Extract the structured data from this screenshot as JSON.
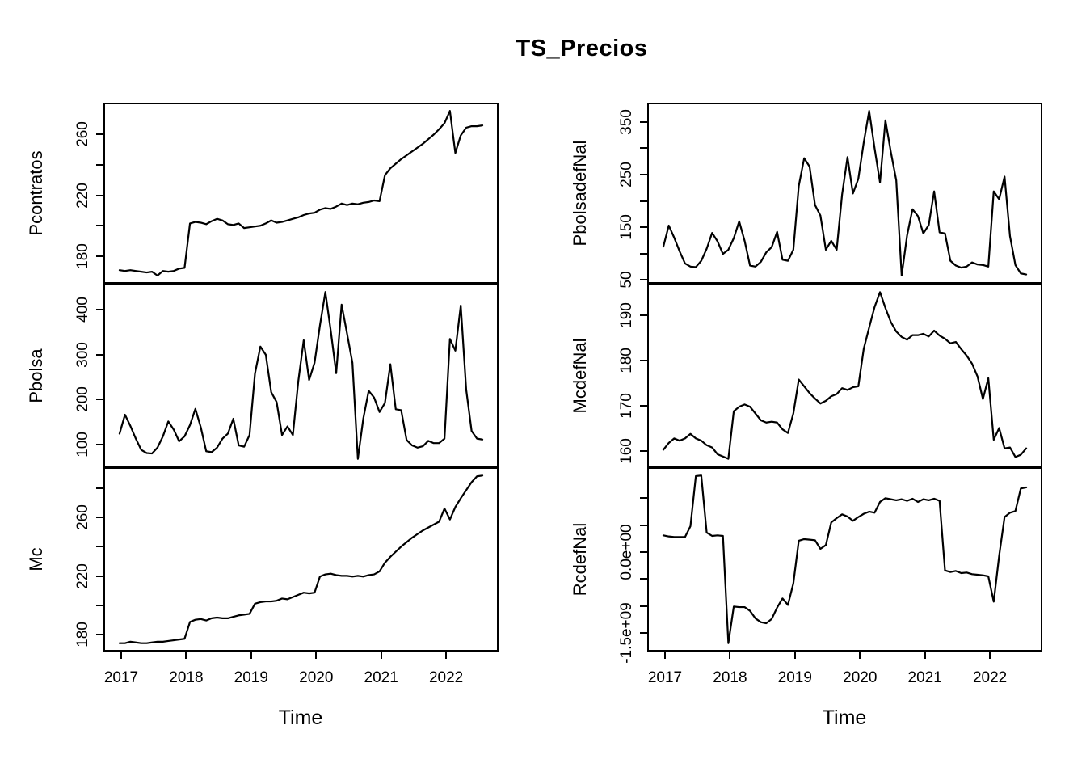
{
  "title": "TS_Precios",
  "chart_data": {
    "type": "line",
    "title": "TS_Precios",
    "xlabel": "Time",
    "x_unit": "monthly",
    "x_start": 2017.0,
    "x_end": 2022.5833,
    "n_points": 68,
    "x_ticks": [
      2017,
      2018,
      2019,
      2020,
      2021,
      2022
    ],
    "x_tick_labels": [
      "2017",
      "2018",
      "2019",
      "2020",
      "2021",
      "2022"
    ],
    "grid": "off",
    "line_color": "#000000",
    "panels": [
      {
        "name": "Pcontratos",
        "row": 0,
        "col": 0,
        "ylim": [
          162.2,
          278.3
        ],
        "yticks": [
          [
            180,
            "180"
          ],
          [
            200,
            ""
          ],
          [
            220,
            "220"
          ],
          [
            240,
            ""
          ],
          [
            260,
            "260"
          ]
        ],
        "values": [
          170,
          169.5,
          170,
          169.5,
          169,
          168.5,
          169,
          166.5,
          169.5,
          169,
          169.5,
          171,
          171.5,
          200.5,
          201.5,
          201,
          200,
          202,
          203.5,
          202.5,
          200,
          199.5,
          200.5,
          197.5,
          198,
          198.5,
          199,
          200.5,
          202.5,
          201,
          201.5,
          202.5,
          203.5,
          204.5,
          206,
          207,
          207.5,
          209.5,
          210.5,
          210,
          211.5,
          213.5,
          212.5,
          213.5,
          213,
          214,
          214.5,
          215.5,
          215,
          232,
          236.5,
          239.5,
          242.5,
          245,
          247.5,
          250,
          252.5,
          255.5,
          258.5,
          262,
          266,
          274,
          246.5,
          258,
          263,
          264,
          264,
          264.5
        ]
      },
      {
        "name": "PbolsadefNal",
        "row": 0,
        "col": 1,
        "ylim": [
          42.5,
          380.5
        ],
        "yticks": [
          [
            50,
            "50"
          ],
          [
            100,
            ""
          ],
          [
            150,
            "150"
          ],
          [
            200,
            ""
          ],
          [
            250,
            "250"
          ],
          [
            300,
            ""
          ],
          [
            350,
            "350"
          ]
        ],
        "values": [
          110,
          150,
          127,
          101,
          78,
          72,
          71,
          83,
          106,
          136,
          120,
          96,
          104,
          126,
          158,
          121,
          74,
          72,
          81,
          99,
          109,
          138,
          85,
          83,
          104,
          225,
          278,
          262,
          189,
          169,
          104,
          121,
          104,
          209,
          280,
          211,
          239,
          308,
          368,
          297,
          232,
          350,
          290,
          236,
          55,
          131,
          181,
          168,
          135,
          151,
          215,
          137,
          135,
          83,
          74,
          70,
          72,
          80,
          76,
          75,
          72,
          215,
          200,
          243,
          130,
          75,
          59,
          57
        ]
      },
      {
        "name": "Pbolsa",
        "row": 1,
        "col": 0,
        "ylim": [
          50.2,
          449.8
        ],
        "yticks": [
          [
            100,
            "100"
          ],
          [
            200,
            "200"
          ],
          [
            300,
            "300"
          ],
          [
            400,
            "400"
          ]
        ],
        "values": [
          121,
          163,
          138,
          110,
          85,
          78,
          77,
          90,
          115,
          148,
          130,
          104,
          115,
          140,
          176,
          135,
          82,
          80,
          90,
          110,
          121,
          154,
          95,
          92,
          118,
          254,
          314,
          296,
          213,
          191,
          118,
          137,
          118,
          237,
          328,
          240,
          278,
          361,
          435,
          349,
          255,
          407,
          343,
          278,
          65,
          154,
          216,
          201,
          169,
          189,
          275,
          175,
          173,
          107,
          95,
          90,
          93,
          105,
          100,
          100,
          110,
          331,
          305,
          405,
          219,
          127,
          110,
          108
        ]
      },
      {
        "name": "McdefNal",
        "row": 1,
        "col": 1,
        "ylim": [
          156.5,
          196.3
        ],
        "yticks": [
          [
            160,
            "160"
          ],
          [
            170,
            "170"
          ],
          [
            180,
            "180"
          ],
          [
            190,
            "190"
          ]
        ],
        "values": [
          160,
          161.5,
          162.5,
          162,
          162.5,
          163.5,
          162.5,
          162,
          161,
          160.5,
          159,
          158.5,
          158,
          168.5,
          169.5,
          170,
          169.5,
          168,
          166.5,
          166,
          166.2,
          166,
          164.5,
          163.7,
          168,
          175.5,
          174,
          172.5,
          171.3,
          170.2,
          170.8,
          171.8,
          172.3,
          173.6,
          173.2,
          173.8,
          174,
          182.3,
          187,
          191.5,
          194.8,
          191.3,
          188.2,
          186.1,
          184.9,
          184.3,
          185.3,
          185.3,
          185.6,
          185,
          186.3,
          185.2,
          184.5,
          183.5,
          183.8,
          182.2,
          180.8,
          179,
          176.2,
          171.2,
          175.8,
          162.2,
          164.8,
          160.3,
          160.5,
          158.4,
          158.9,
          160.3
        ]
      },
      {
        "name": "Mc",
        "row": 2,
        "col": 0,
        "ylim": [
          168.4,
          292.1
        ],
        "yticks": [
          [
            180,
            "180"
          ],
          [
            200,
            ""
          ],
          [
            220,
            "220"
          ],
          [
            240,
            ""
          ],
          [
            260,
            "260"
          ],
          [
            280,
            ""
          ]
        ],
        "values": [
          173,
          173,
          174,
          173.5,
          173,
          173,
          173.5,
          174,
          174,
          174.5,
          175,
          175.5,
          176,
          187.5,
          189,
          189.5,
          188.5,
          190,
          190.5,
          190,
          190,
          191,
          192,
          192.5,
          193,
          200,
          201,
          201.5,
          201.5,
          202,
          203.5,
          203,
          204.5,
          206,
          207.5,
          207,
          207.5,
          218.5,
          220,
          220.5,
          219.5,
          219,
          219,
          218.5,
          219,
          218.5,
          219.5,
          220,
          222,
          228,
          232,
          235.5,
          239,
          242,
          245,
          247.5,
          250,
          252,
          254,
          256,
          265,
          257.5,
          266,
          272,
          277.5,
          283,
          287,
          287.5
        ]
      },
      {
        "name": "RcdefNal",
        "row": 2,
        "col": 1,
        "unit": "1e9",
        "ylim": [
          -1.844,
          1.514
        ],
        "yticks": [
          [
            -1.5,
            "-1.5e+09"
          ],
          [
            -1.0,
            ""
          ],
          [
            -0.5,
            ""
          ],
          [
            0,
            "0.0e+00"
          ],
          [
            0.5,
            ""
          ],
          [
            1.0,
            ""
          ]
        ],
        "values": [
          0.28,
          0.26,
          0.25,
          0.25,
          0.25,
          0.45,
          1.38,
          1.39,
          0.33,
          0.27,
          0.28,
          0.27,
          -1.72,
          -1.04,
          -1.05,
          -1.05,
          -1.12,
          -1.26,
          -1.33,
          -1.35,
          -1.27,
          -1.06,
          -0.89,
          -1.01,
          -0.61,
          0.18,
          0.21,
          0.2,
          0.19,
          0.03,
          0.1,
          0.52,
          0.6,
          0.67,
          0.63,
          0.55,
          0.62,
          0.68,
          0.72,
          0.7,
          0.9,
          0.97,
          0.95,
          0.93,
          0.95,
          0.92,
          0.96,
          0.9,
          0.95,
          0.93,
          0.96,
          0.92,
          -0.37,
          -0.4,
          -0.38,
          -0.42,
          -0.41,
          -0.44,
          -0.45,
          -0.46,
          -0.48,
          -0.95,
          -0.1,
          0.62,
          0.7,
          0.73,
          1.15,
          1.17
        ]
      }
    ]
  }
}
